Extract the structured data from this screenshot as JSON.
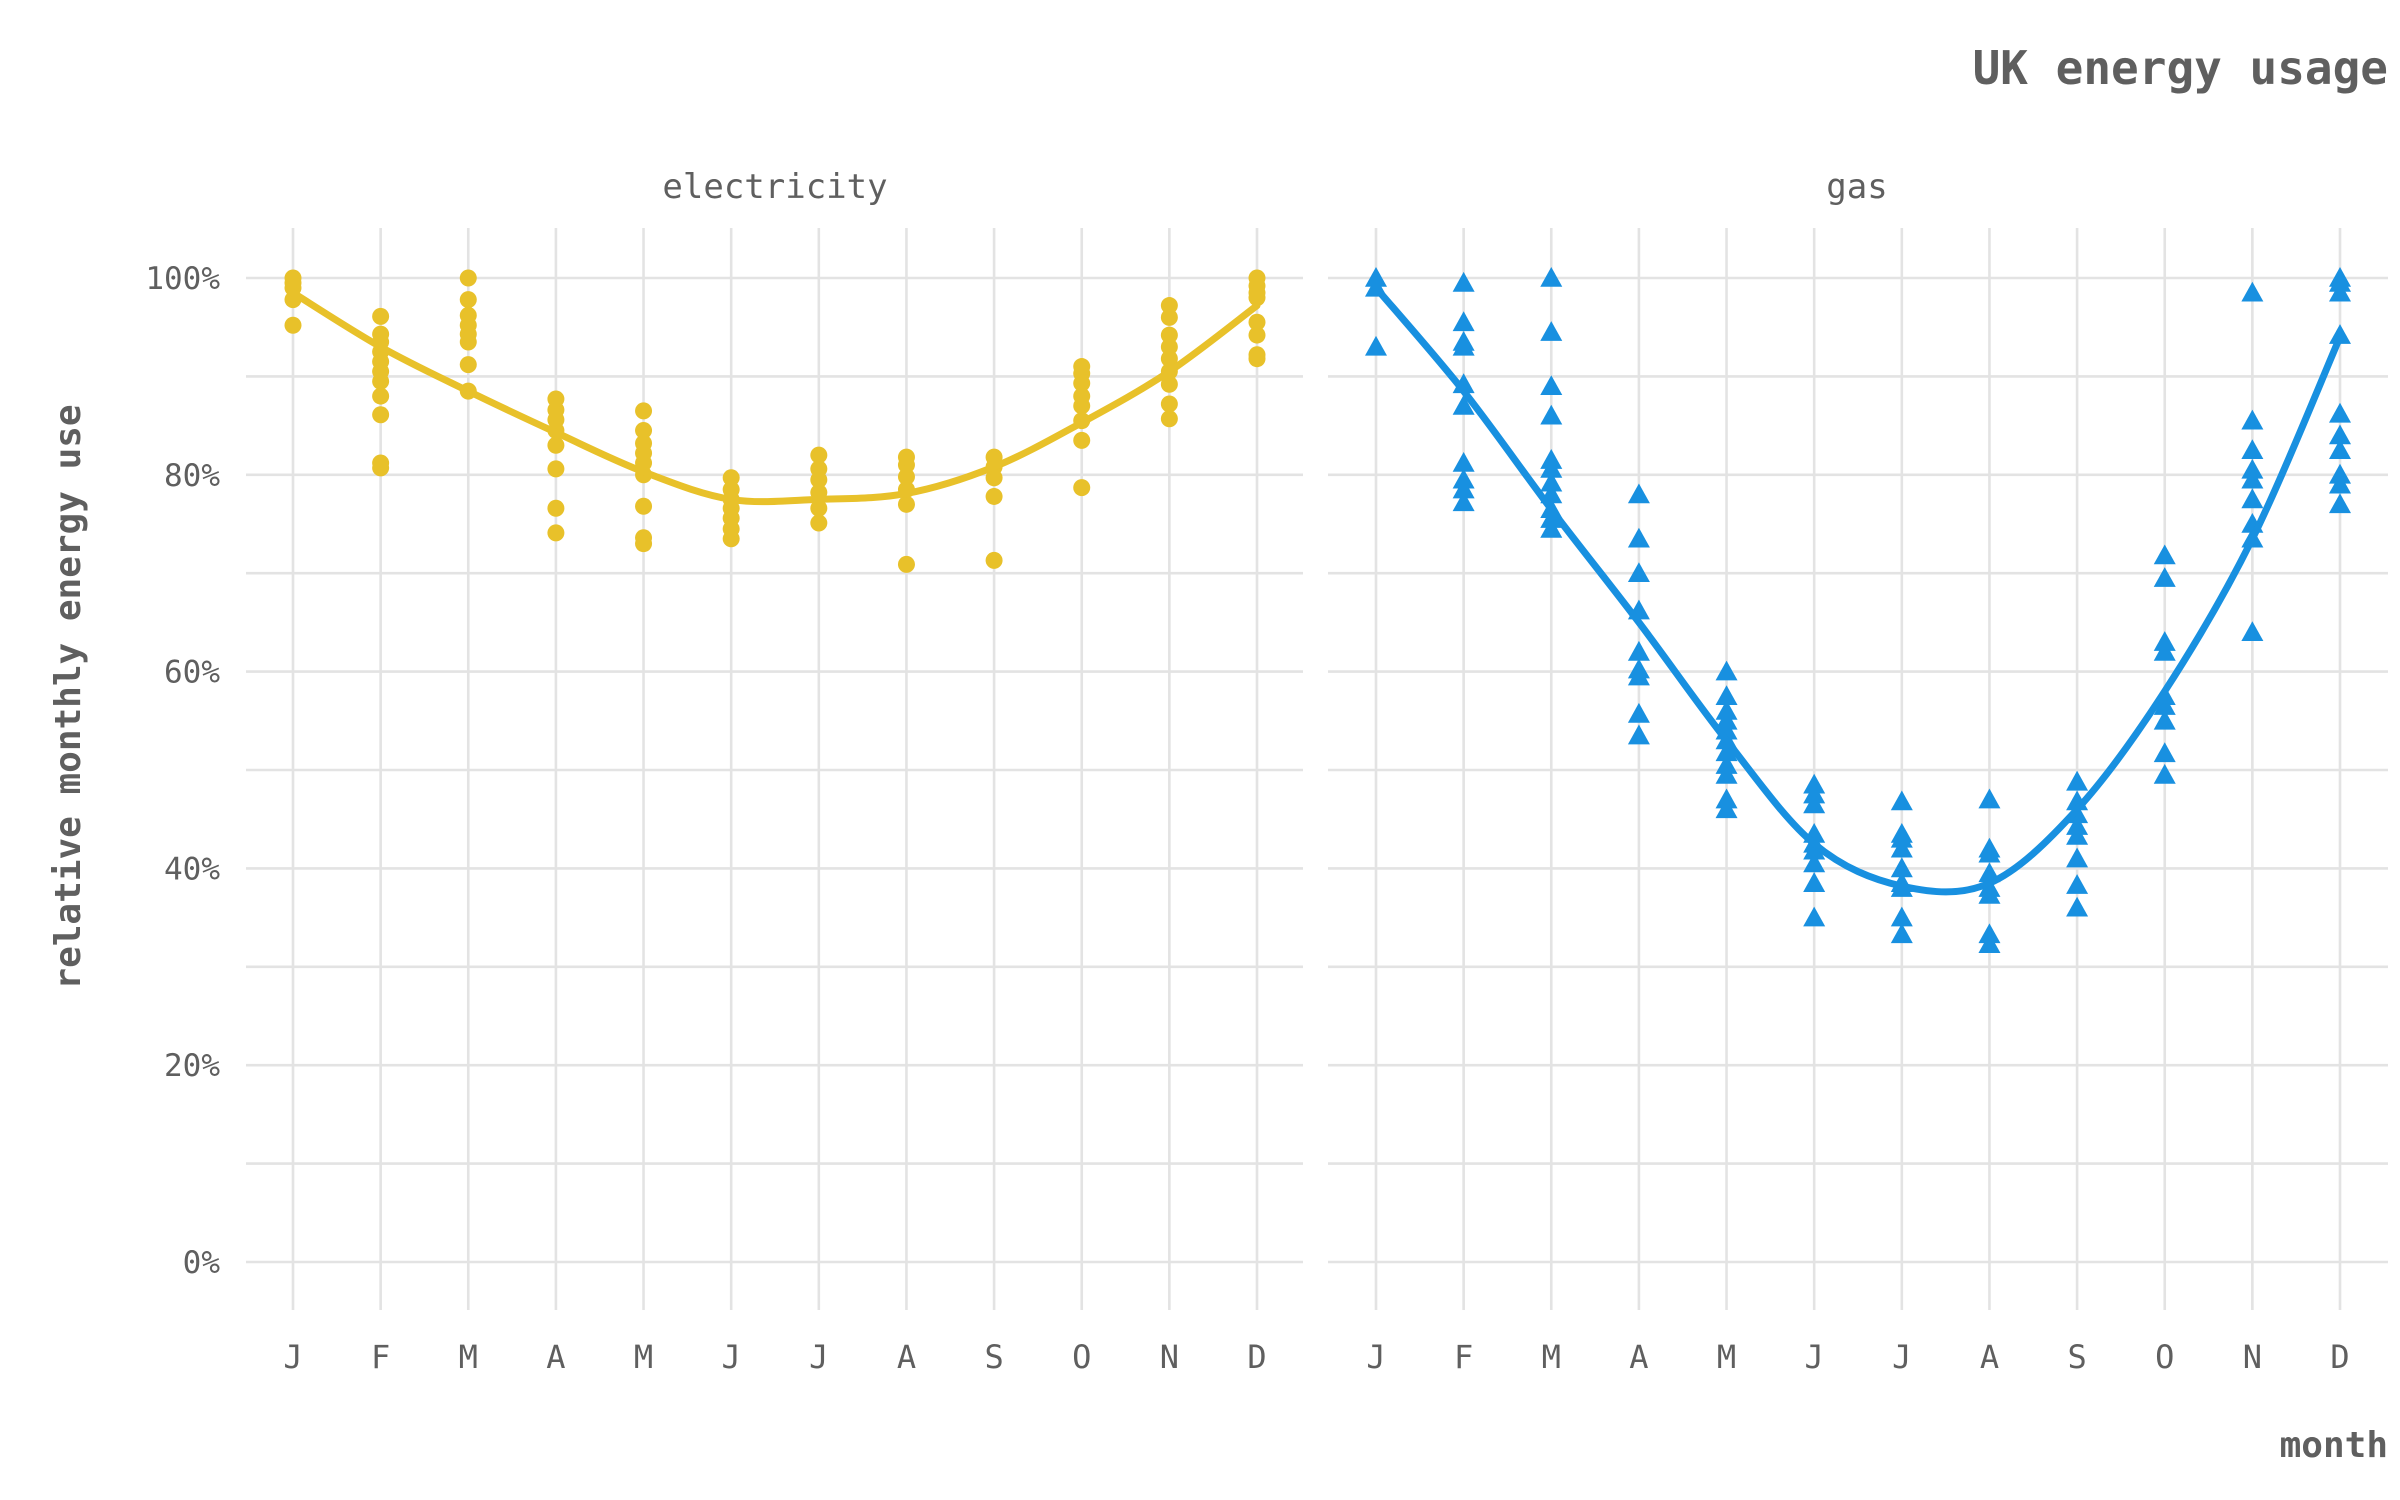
{
  "chart_data": {
    "type": "scatter",
    "title": "UK energy usage",
    "xlabel": "month",
    "ylabel": "relative monthly energy use",
    "categories": [
      "J",
      "F",
      "M",
      "A",
      "M",
      "J",
      "J",
      "A",
      "S",
      "O",
      "N",
      "D"
    ],
    "ylim": [
      0,
      1
    ],
    "yticks": [
      {
        "value": 0,
        "label": "0%"
      },
      {
        "value": 0.2,
        "label": "20%"
      },
      {
        "value": 0.4,
        "label": "40%"
      },
      {
        "value": 0.6,
        "label": "60%"
      },
      {
        "value": 0.8,
        "label": "80%"
      },
      {
        "value": 1.0,
        "label": "100%"
      }
    ],
    "grid": true,
    "legend": "none",
    "trend": "smoothed curve per panel",
    "panels": [
      {
        "name": "electricity",
        "color": "#E8C12A",
        "marker": "circle",
        "points": [
          [
            0.952,
            0.978,
            0.99,
            0.995,
            1.0
          ],
          [
            0.807,
            0.812,
            0.861,
            0.88,
            0.895,
            0.905,
            0.915,
            0.925,
            0.935,
            0.943,
            0.961
          ],
          [
            0.885,
            0.912,
            0.935,
            0.943,
            0.952,
            0.962,
            0.978,
            1.0
          ],
          [
            0.741,
            0.766,
            0.806,
            0.83,
            0.845,
            0.856,
            0.866,
            0.877
          ],
          [
            0.73,
            0.736,
            0.768,
            0.8,
            0.812,
            0.822,
            0.832,
            0.845,
            0.865
          ],
          [
            0.735,
            0.745,
            0.756,
            0.766,
            0.775,
            0.785,
            0.797
          ],
          [
            0.751,
            0.766,
            0.782,
            0.795,
            0.806,
            0.82
          ],
          [
            0.709,
            0.77,
            0.785,
            0.798,
            0.81,
            0.818
          ],
          [
            0.713,
            0.778,
            0.797,
            0.808,
            0.818
          ],
          [
            0.787,
            0.835,
            0.855,
            0.87,
            0.88,
            0.893,
            0.903,
            0.91
          ],
          [
            0.857,
            0.872,
            0.892,
            0.905,
            0.918,
            0.93,
            0.942,
            0.96,
            0.972
          ],
          [
            0.918,
            0.922,
            0.942,
            0.955,
            0.98,
            0.985,
            0.992,
            1.0
          ]
        ],
        "trend_values": [
          0.985,
          0.93,
          0.885,
          0.843,
          0.803,
          0.775,
          0.775,
          0.781,
          0.808,
          0.853,
          0.905,
          0.972
        ]
      },
      {
        "name": "gas",
        "color": "#1890E0",
        "marker": "triangle",
        "points": [
          [
            0.93,
            0.99,
            1.0
          ],
          [
            0.772,
            0.785,
            0.795,
            0.812,
            0.87,
            0.892,
            0.93,
            0.935,
            0.955,
            0.995
          ],
          [
            0.745,
            0.755,
            0.765,
            0.78,
            0.792,
            0.806,
            0.815,
            0.86,
            0.89,
            0.945,
            1.0
          ],
          [
            0.535,
            0.557,
            0.595,
            0.602,
            0.62,
            0.662,
            0.7,
            0.735,
            0.78
          ],
          [
            0.46,
            0.47,
            0.495,
            0.505,
            0.518,
            0.53,
            0.54,
            0.55,
            0.56,
            0.575,
            0.6
          ],
          [
            0.35,
            0.385,
            0.405,
            0.418,
            0.425,
            0.435,
            0.465,
            0.475,
            0.485
          ],
          [
            0.333,
            0.35,
            0.38,
            0.385,
            0.4,
            0.42,
            0.43,
            0.435,
            0.468
          ],
          [
            0.323,
            0.333,
            0.373,
            0.38,
            0.395,
            0.415,
            0.42,
            0.47
          ],
          [
            0.36,
            0.383,
            0.41,
            0.433,
            0.443,
            0.455,
            0.468,
            0.488
          ],
          [
            0.495,
            0.517,
            0.55,
            0.565,
            0.575,
            0.62,
            0.63,
            0.695,
            0.718
          ],
          [
            0.64,
            0.735,
            0.75,
            0.775,
            0.795,
            0.805,
            0.825,
            0.855,
            0.985
          ],
          [
            0.77,
            0.79,
            0.8,
            0.825,
            0.84,
            0.862,
            0.942,
            0.985,
            0.995,
            1.0
          ]
        ],
        "trend_values": [
          0.99,
          0.885,
          0.765,
          0.65,
          0.53,
          0.425,
          0.382,
          0.385,
          0.46,
          0.58,
          0.735,
          0.94
        ]
      }
    ]
  }
}
